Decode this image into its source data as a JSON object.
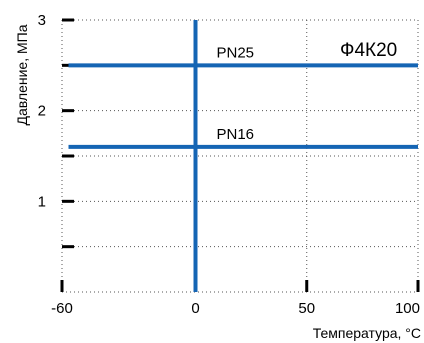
{
  "chart_data": {
    "type": "line",
    "title": "Ф4К20",
    "xlabel": "Температура, °С",
    "ylabel": "Давление, МПа",
    "xlim": [
      -60,
      100
    ],
    "ylim": [
      0,
      3
    ],
    "grid": true,
    "x_ticks": [
      {
        "value": -60,
        "label": "-60"
      },
      {
        "value": 0,
        "label": "0"
      },
      {
        "value": 50,
        "label": "50"
      },
      {
        "value": 100,
        "label": "100"
      }
    ],
    "y_ticks": [
      {
        "value": 1,
        "label": "1"
      },
      {
        "value": 2,
        "label": "2"
      },
      {
        "value": 3,
        "label": "3"
      }
    ],
    "y_minor_ticks": [
      0.5,
      1.5,
      2.5
    ],
    "vertical_line_x": 0,
    "series": [
      {
        "name": "PN25",
        "x": [
          0,
          100
        ],
        "y": [
          2.5,
          2.5
        ]
      },
      {
        "name": "PN16",
        "x": [
          0,
          100
        ],
        "y": [
          1.6,
          1.6
        ]
      }
    ],
    "line_color": "#1565b4"
  }
}
